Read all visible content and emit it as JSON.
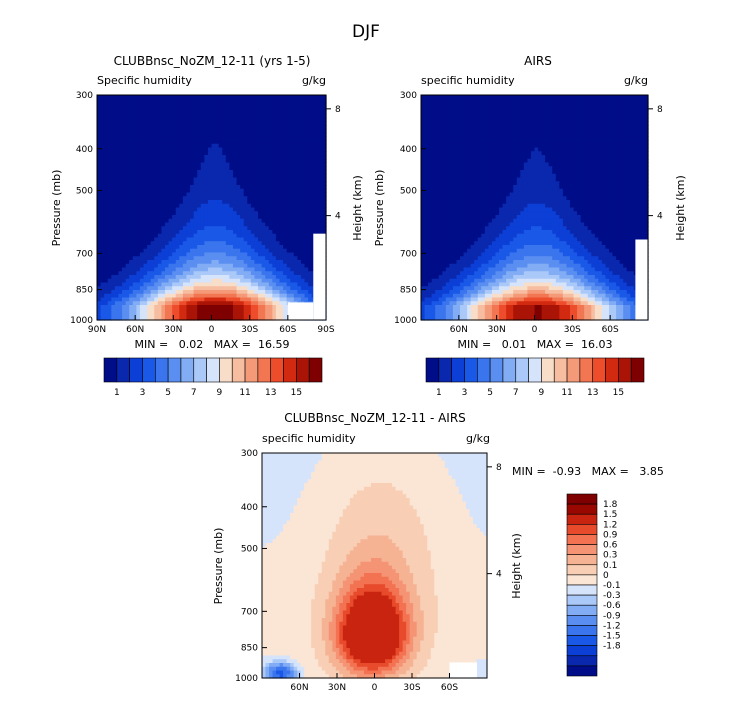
{
  "figure": {
    "title": "DJF"
  },
  "colors": {
    "seq": [
      "#000d88",
      "#0a28ae",
      "#0c3fd6",
      "#1a59e8",
      "#3a75ee",
      "#5a8ef1",
      "#82adf5",
      "#aac8f8",
      "#d6e4fb",
      "#f8ddc8",
      "#f6bda0",
      "#f49a78",
      "#f27652",
      "#ee4d2c",
      "#d22a10",
      "#aa1407",
      "#7e0000"
    ],
    "div": [
      "#000d88",
      "#0a28ae",
      "#0c3fd6",
      "#1a59e8",
      "#3a75ee",
      "#5a8ef1",
      "#82adf5",
      "#aac8f8",
      "#d6e4fb",
      "#fbe6d6",
      "#f8ceb4",
      "#f6b393",
      "#f49474",
      "#f27252",
      "#e84a2c",
      "#c82410",
      "#980800",
      "#7e0000"
    ]
  },
  "chart_data": [
    {
      "id": "model",
      "type": "heatmap",
      "title": "CLUBBnsc_NoZM_12-11 (yrs 1-5)",
      "subtitle_left": "Specific humidity",
      "subtitle_right": "g/kg",
      "ylabel": "Pressure (mb)",
      "ylabel_right": "Height (km)",
      "y_ticks": [
        "300",
        "400",
        "500",
        "700",
        "850",
        "1000"
      ],
      "y_tick_values": [
        300,
        400,
        500,
        700,
        850,
        1000
      ],
      "height_ticks": [
        "8",
        "4"
      ],
      "height_tick_values": [
        8,
        4
      ],
      "x_ticks": [
        "90N",
        "60N",
        "30N",
        "0",
        "30S",
        "60S",
        "90S"
      ],
      "x_tick_values": [
        90,
        60,
        30,
        0,
        -30,
        -60,
        -90
      ],
      "stats": "MIN =   0.02   MAX =  16.59",
      "min": 0.02,
      "max": 16.59,
      "peak_pressure": 925,
      "peak_lat": -3
    },
    {
      "id": "obs",
      "type": "heatmap",
      "title": "AIRS",
      "subtitle_left": "specific humidity",
      "subtitle_right": "g/kg",
      "ylabel": "Pressure (mb)",
      "ylabel_right": "Height (km)",
      "y_ticks": [
        "300",
        "400",
        "500",
        "700",
        "850",
        "1000"
      ],
      "y_tick_values": [
        300,
        400,
        500,
        700,
        850,
        1000
      ],
      "height_ticks": [
        "8",
        "4"
      ],
      "height_tick_values": [
        8,
        4
      ],
      "x_ticks": [
        "60N",
        "30N",
        "0",
        "30S",
        "60S"
      ],
      "x_tick_values": [
        60,
        30,
        0,
        -30,
        -60
      ],
      "stats": "MIN =   0.01   MAX =  16.03",
      "min": 0.01,
      "max": 16.03,
      "peak_pressure": 930,
      "peak_lat": -2
    },
    {
      "id": "diff",
      "type": "heatmap",
      "title": "CLUBBnsc_NoZM_12-11 - AIRS",
      "subtitle_left": "specific humidity",
      "subtitle_right": "g/kg",
      "ylabel": "Pressure (mb)",
      "ylabel_right": "Height (km)",
      "y_ticks": [
        "300",
        "400",
        "500",
        "700",
        "850",
        "1000"
      ],
      "y_tick_values": [
        300,
        400,
        500,
        700,
        850,
        1000
      ],
      "height_ticks": [
        "8",
        "4"
      ],
      "height_tick_values": [
        8,
        4
      ],
      "x_ticks": [
        "60N",
        "30N",
        "0",
        "30S",
        "60S"
      ],
      "x_tick_values": [
        60,
        30,
        0,
        -30,
        -60
      ],
      "stats": "MIN =  -0.93   MAX =   3.85",
      "min": -0.93,
      "max": 3.85
    }
  ],
  "colorbars": {
    "sequential": {
      "orientation": "horizontal",
      "labels": [
        "1",
        "3",
        "5",
        "7",
        "9",
        "11",
        "13",
        "15"
      ],
      "values": [
        1,
        3,
        5,
        7,
        9,
        11,
        13,
        15
      ]
    },
    "diverging": {
      "orientation": "vertical",
      "labels": [
        "1.8",
        "1.5",
        "1.2",
        "0.9",
        "0.6",
        "0.3",
        "0.1",
        "0",
        "-0.1",
        "-0.3",
        "-0.6",
        "-0.9",
        "-1.2",
        "-1.5",
        "-1.8"
      ]
    }
  }
}
